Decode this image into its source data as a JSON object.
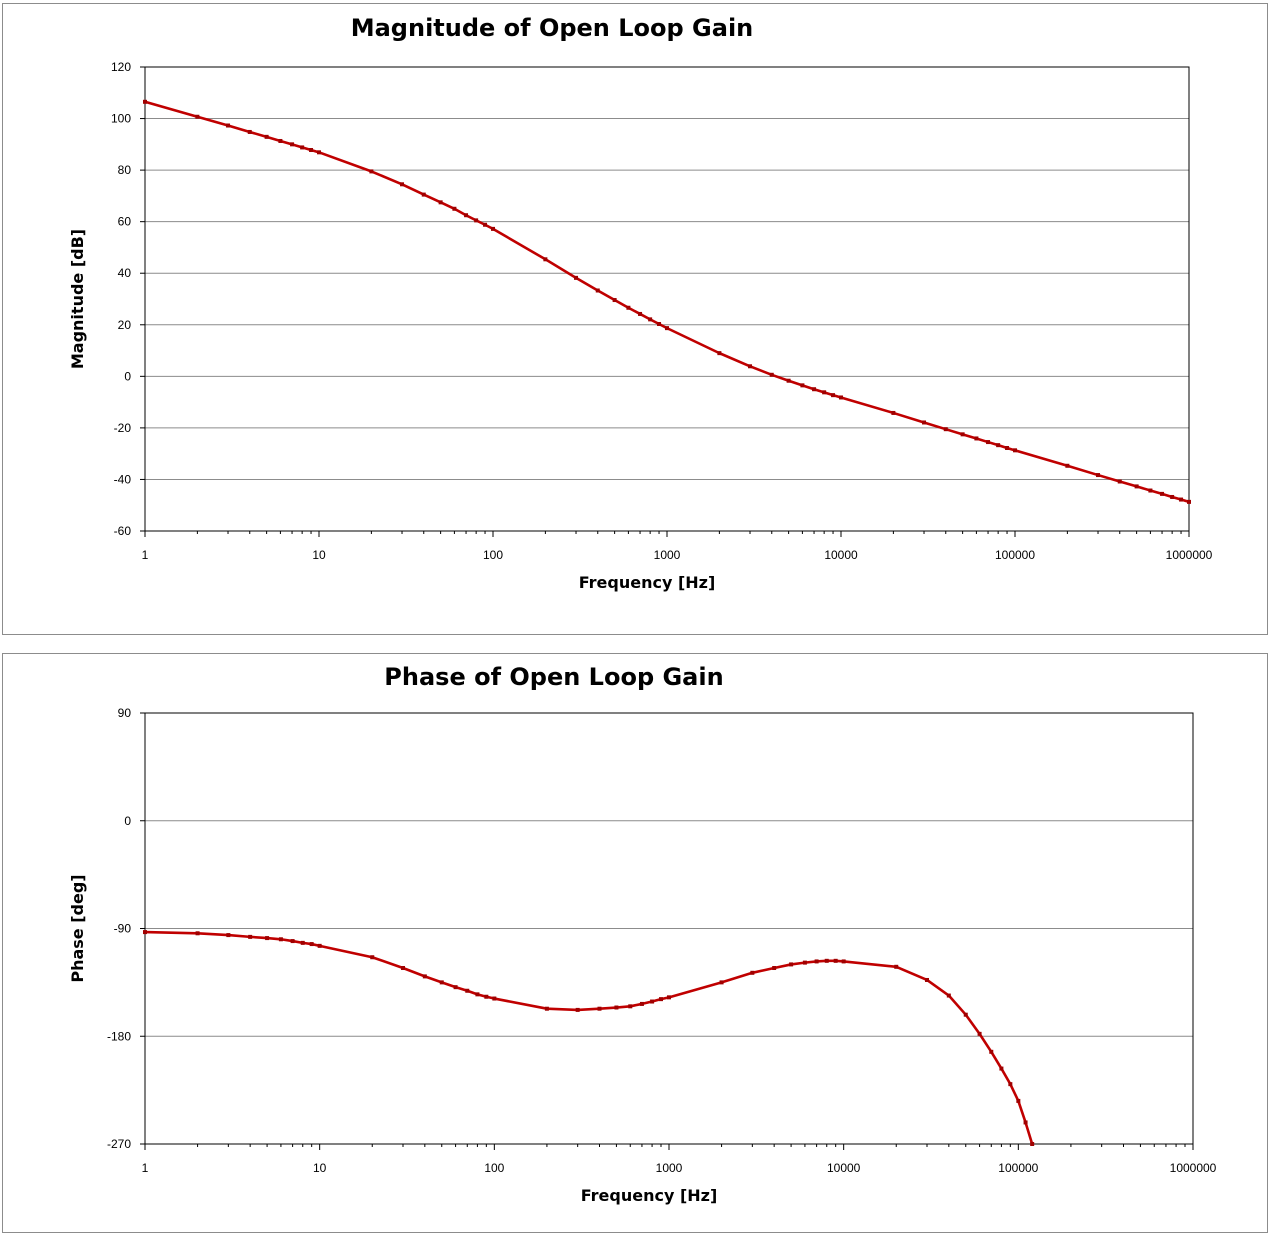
{
  "chart_data": [
    {
      "type": "line",
      "title": "Magnitude of Open Loop Gain",
      "xlabel": "Frequency [Hz]",
      "ylabel": "Magnitude [dB]",
      "xscale": "log",
      "xlim": [
        1,
        1000000
      ],
      "ylim": [
        -60,
        120
      ],
      "xticks": [
        "1",
        "10",
        "100",
        "1000",
        "10000",
        "100000",
        "1000000"
      ],
      "yticks": [
        "120",
        "100",
        "80",
        "60",
        "40",
        "20",
        "0",
        "-20",
        "-40",
        "-60"
      ],
      "grid": true,
      "line_color": "#c00000",
      "x": [
        1,
        2,
        3,
        4,
        5,
        6,
        7,
        8,
        9,
        10,
        20,
        30,
        40,
        50,
        60,
        70,
        80,
        90,
        100,
        200,
        300,
        400,
        500,
        600,
        700,
        800,
        900,
        1000,
        2000,
        3000,
        4000,
        5000,
        6000,
        7000,
        8000,
        9000,
        10000,
        20000,
        30000,
        40000,
        50000,
        60000,
        70000,
        80000,
        90000,
        100000,
        200000,
        300000,
        400000,
        500000,
        600000,
        700000,
        800000,
        900000,
        1000000
      ],
      "y": [
        106.5,
        100.7,
        97.3,
        94.8,
        92.9,
        91.3,
        90.0,
        88.8,
        87.8,
        86.9,
        79.5,
        74.5,
        70.5,
        67.5,
        65.0,
        62.5,
        60.5,
        58.8,
        57.2,
        45.4,
        38.2,
        33.3,
        29.6,
        26.6,
        24.2,
        22.1,
        20.3,
        18.7,
        9.0,
        3.9,
        0.6,
        -1.7,
        -3.5,
        -5.0,
        -6.2,
        -7.3,
        -8.2,
        -14.2,
        -17.9,
        -20.5,
        -22.5,
        -24.1,
        -25.5,
        -26.7,
        -27.8,
        -28.7,
        -34.7,
        -38.3,
        -40.8,
        -42.7,
        -44.3,
        -45.6,
        -46.8,
        -47.8,
        -48.7
      ]
    },
    {
      "type": "line",
      "title": "Phase of Open Loop Gain",
      "xlabel": "Frequency [Hz]",
      "ylabel": "Phase [deg]",
      "xscale": "log",
      "xlim": [
        1,
        1000000
      ],
      "ylim": [
        -270,
        90
      ],
      "xticks": [
        "1",
        "10",
        "100",
        "1000",
        "10000",
        "100000",
        "1000000"
      ],
      "yticks": [
        "90",
        "0",
        "-90",
        "-180",
        "-270"
      ],
      "grid": true,
      "line_color": "#c00000",
      "x": [
        1,
        2,
        3,
        4,
        5,
        6,
        7,
        8,
        9,
        10,
        20,
        30,
        40,
        50,
        60,
        70,
        80,
        90,
        100,
        200,
        300,
        400,
        500,
        600,
        700,
        800,
        900,
        1000,
        2000,
        3000,
        4000,
        5000,
        6000,
        7000,
        8000,
        9000,
        10000,
        20000,
        30000,
        40000,
        50000,
        60000,
        70000,
        80000,
        90000,
        100000,
        110000,
        120000
      ],
      "y": [
        -93,
        -94,
        -95.5,
        -97,
        -98,
        -99,
        -100.5,
        -102,
        -103,
        -104.5,
        -114,
        -123,
        -130,
        -135,
        -139,
        -142,
        -145,
        -147,
        -148.5,
        -157,
        -158,
        -157,
        -156,
        -155,
        -153,
        -151,
        -149,
        -147.5,
        -135,
        -127,
        -123,
        -120,
        -118.5,
        -117.5,
        -117,
        -117,
        -117.5,
        -122,
        -133,
        -146,
        -162,
        -178,
        -193,
        -207,
        -220,
        -234,
        -252,
        -270
      ]
    }
  ]
}
